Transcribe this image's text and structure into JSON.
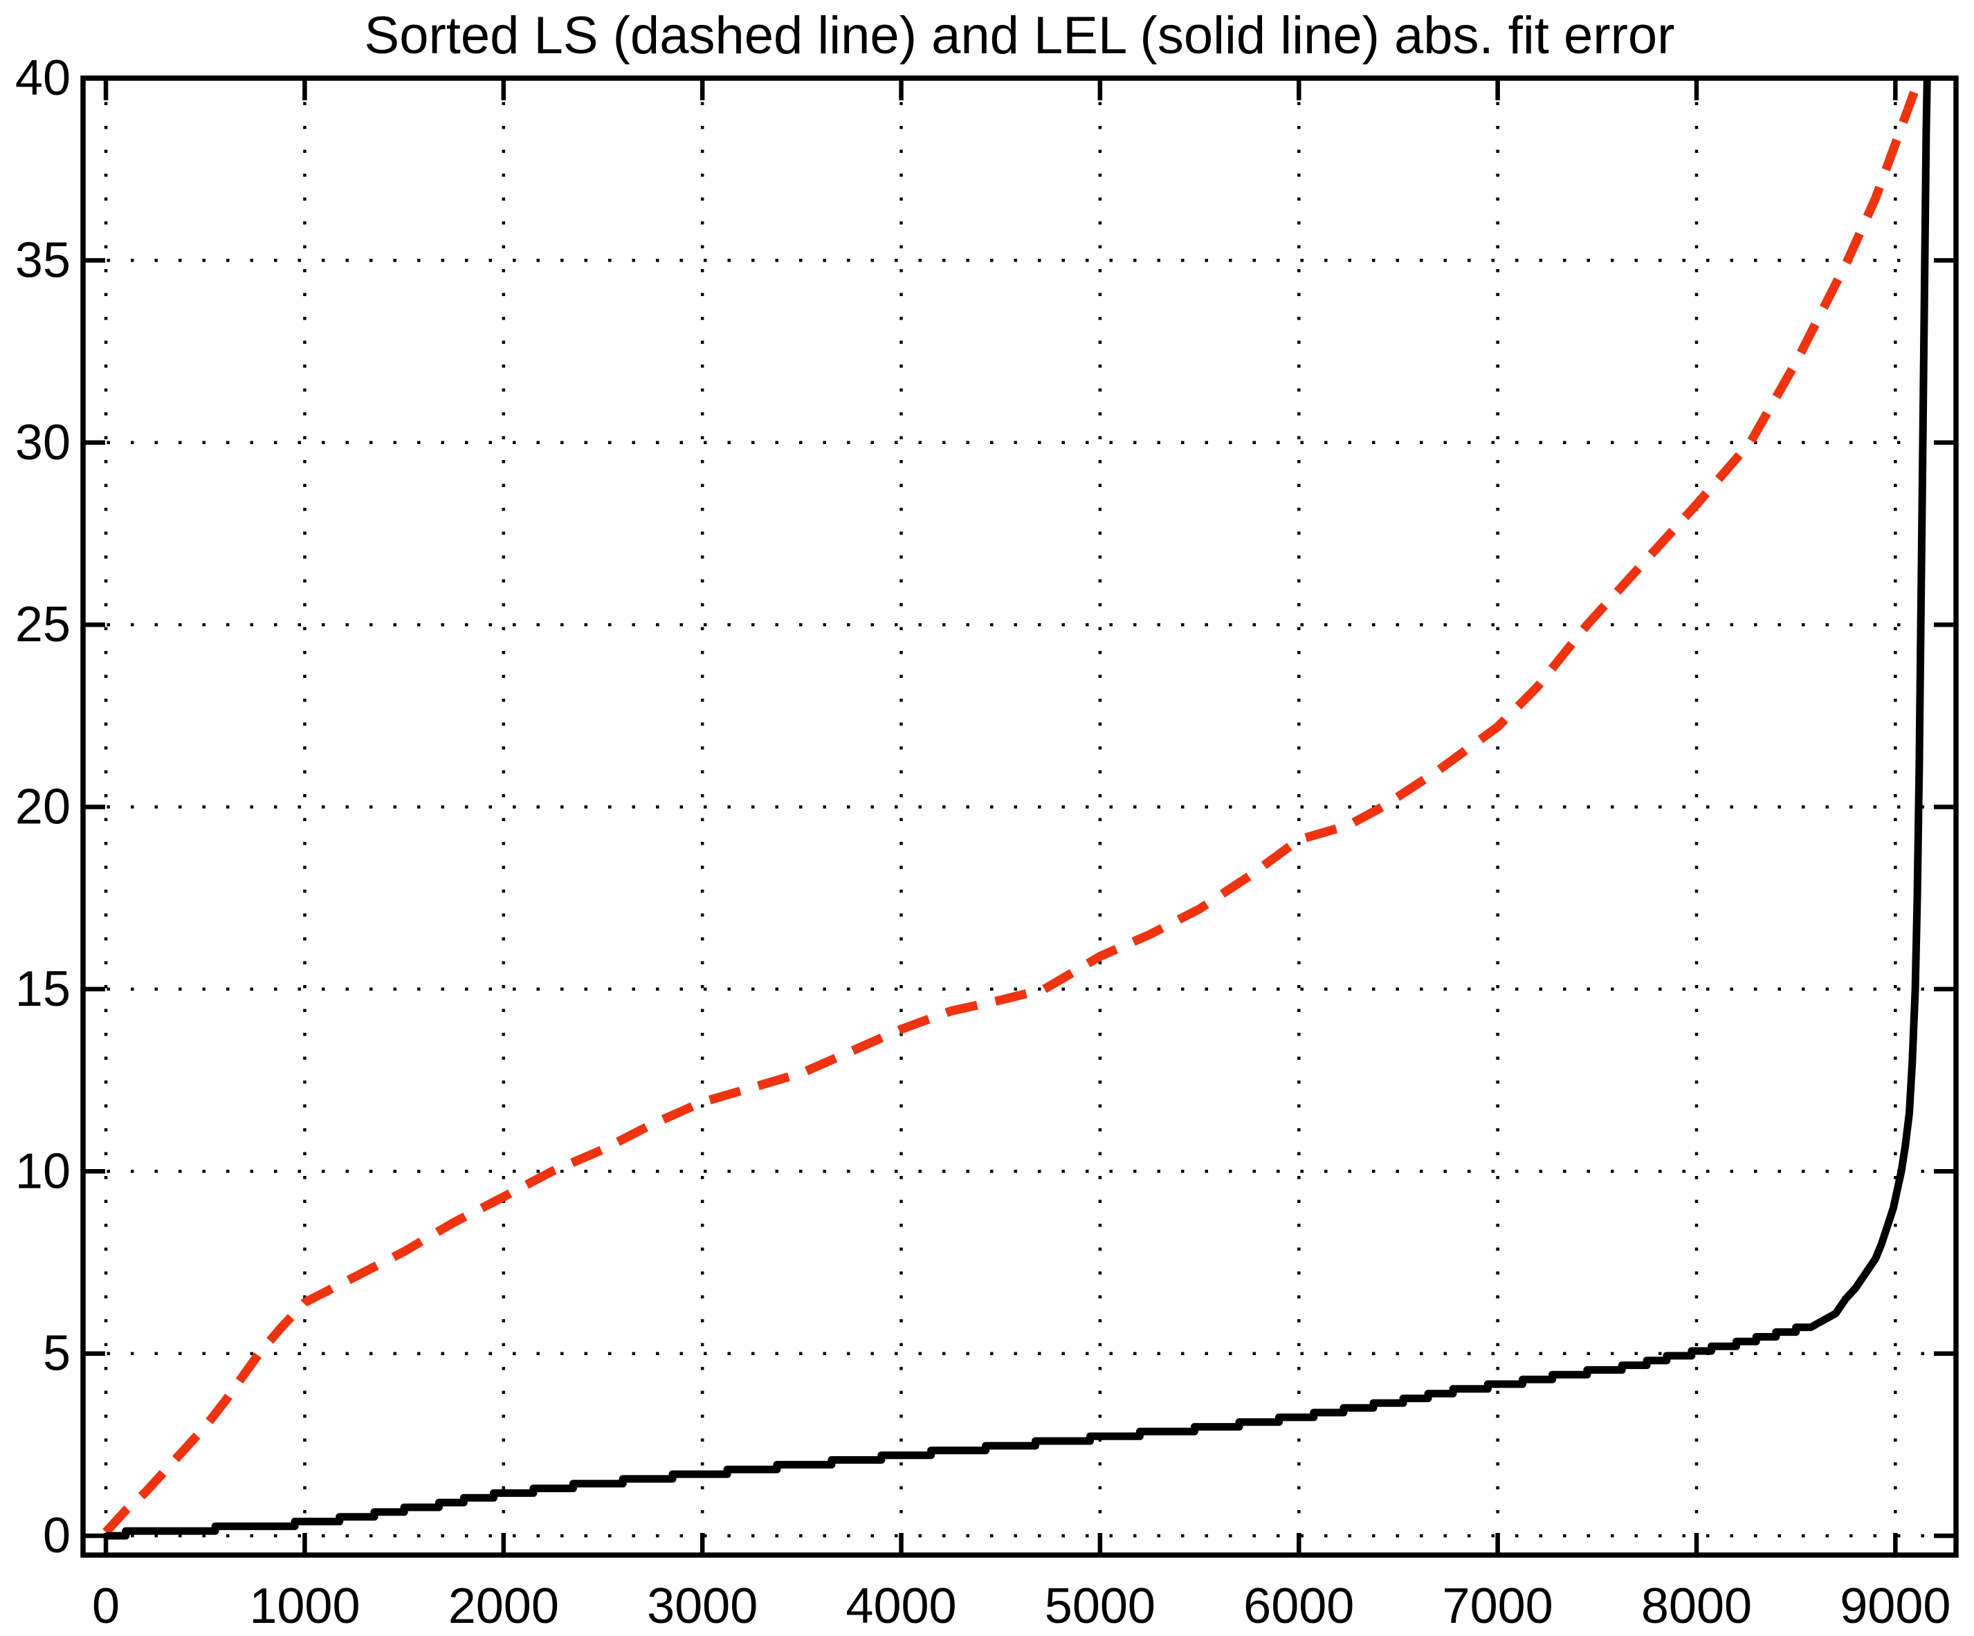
{
  "title": "Sorted LS (dashed line) and LEL (solid line) abs. fit error",
  "colors": {
    "background": "#ffffff",
    "axis": "#000000",
    "grid": "#000000",
    "ls_dashed": "#ee3311",
    "lel_solid": "#000000"
  },
  "chart_data": {
    "type": "line",
    "title": "Sorted LS (dashed line) and LEL (solid line) abs. fit error",
    "xlabel": "",
    "ylabel": "",
    "xlim": [
      -115,
      9305
    ],
    "ylim": [
      -0.53,
      40
    ],
    "x_ticks": [
      0,
      1000,
      2000,
      3000,
      4000,
      5000,
      6000,
      7000,
      8000,
      9000
    ],
    "y_ticks": [
      0,
      5,
      10,
      15,
      20,
      25,
      30,
      35,
      40
    ],
    "grid": "dotted",
    "legend_position": "none",
    "series": [
      {
        "name": "LS abs. fit error",
        "style": "dashed",
        "color": "#ee3311",
        "linewidth": 13,
        "points": [
          [
            0,
            0.1
          ],
          [
            100,
            0.7
          ],
          [
            200,
            1.2
          ],
          [
            300,
            1.8
          ],
          [
            400,
            2.4
          ],
          [
            500,
            3.0
          ],
          [
            600,
            3.7
          ],
          [
            770,
            5.0
          ],
          [
            880,
            5.7
          ],
          [
            1000,
            6.4
          ],
          [
            1250,
            7.1
          ],
          [
            1500,
            7.8
          ],
          [
            1750,
            8.6
          ],
          [
            2000,
            9.3
          ],
          [
            2244,
            10.0
          ],
          [
            2500,
            10.6
          ],
          [
            2750,
            11.3
          ],
          [
            3000,
            11.9
          ],
          [
            3250,
            12.3
          ],
          [
            3500,
            12.7
          ],
          [
            3750,
            13.3
          ],
          [
            4000,
            13.9
          ],
          [
            4250,
            14.4
          ],
          [
            4500,
            14.7
          ],
          [
            4720,
            15.0
          ],
          [
            5000,
            15.9
          ],
          [
            5250,
            16.5
          ],
          [
            5500,
            17.2
          ],
          [
            5750,
            18.1
          ],
          [
            6000,
            19.1
          ],
          [
            6250,
            19.5
          ],
          [
            6420,
            20.0
          ],
          [
            6700,
            21.0
          ],
          [
            7000,
            22.2
          ],
          [
            7200,
            23.3
          ],
          [
            7450,
            25.0
          ],
          [
            7700,
            26.5
          ],
          [
            8000,
            28.3
          ],
          [
            8270,
            30.0
          ],
          [
            8500,
            32.2
          ],
          [
            8760,
            35.0
          ],
          [
            8900,
            36.7
          ],
          [
            9000,
            38.2
          ],
          [
            9060,
            39.1
          ],
          [
            9120,
            40.0
          ]
        ]
      },
      {
        "name": "LEL abs. fit error",
        "style": "solid",
        "color": "#000000",
        "linewidth": 11,
        "points": [
          [
            0,
            0.05
          ],
          [
            200,
            0.08
          ],
          [
            400,
            0.15
          ],
          [
            700,
            0.25
          ],
          [
            1000,
            0.35
          ],
          [
            1300,
            0.55
          ],
          [
            1600,
            0.8
          ],
          [
            2000,
            1.15
          ],
          [
            2400,
            1.4
          ],
          [
            2800,
            1.6
          ],
          [
            3200,
            1.8
          ],
          [
            3600,
            2.0
          ],
          [
            4000,
            2.2
          ],
          [
            4400,
            2.4
          ],
          [
            4800,
            2.6
          ],
          [
            5200,
            2.8
          ],
          [
            5600,
            3.0
          ],
          [
            6000,
            3.25
          ],
          [
            6400,
            3.6
          ],
          [
            6800,
            4.0
          ],
          [
            7200,
            4.3
          ],
          [
            7600,
            4.6
          ],
          [
            8000,
            5.05
          ],
          [
            8300,
            5.4
          ],
          [
            8600,
            5.8
          ],
          [
            8700,
            6.1
          ],
          [
            8750,
            6.5
          ],
          [
            8800,
            6.8
          ],
          [
            8850,
            7.2
          ],
          [
            8900,
            7.6
          ],
          [
            8930,
            8.0
          ],
          [
            8960,
            8.5
          ],
          [
            8990,
            9.0
          ],
          [
            9010,
            9.5
          ],
          [
            9030,
            10.0
          ],
          [
            9050,
            10.7
          ],
          [
            9070,
            11.6
          ],
          [
            9085,
            13.0
          ],
          [
            9100,
            15.0
          ],
          [
            9110,
            17.5
          ],
          [
            9120,
            21.0
          ],
          [
            9130,
            26.0
          ],
          [
            9140,
            31.0
          ],
          [
            9148,
            35.0
          ],
          [
            9155,
            38.5
          ],
          [
            9160,
            40.0
          ]
        ]
      }
    ]
  }
}
